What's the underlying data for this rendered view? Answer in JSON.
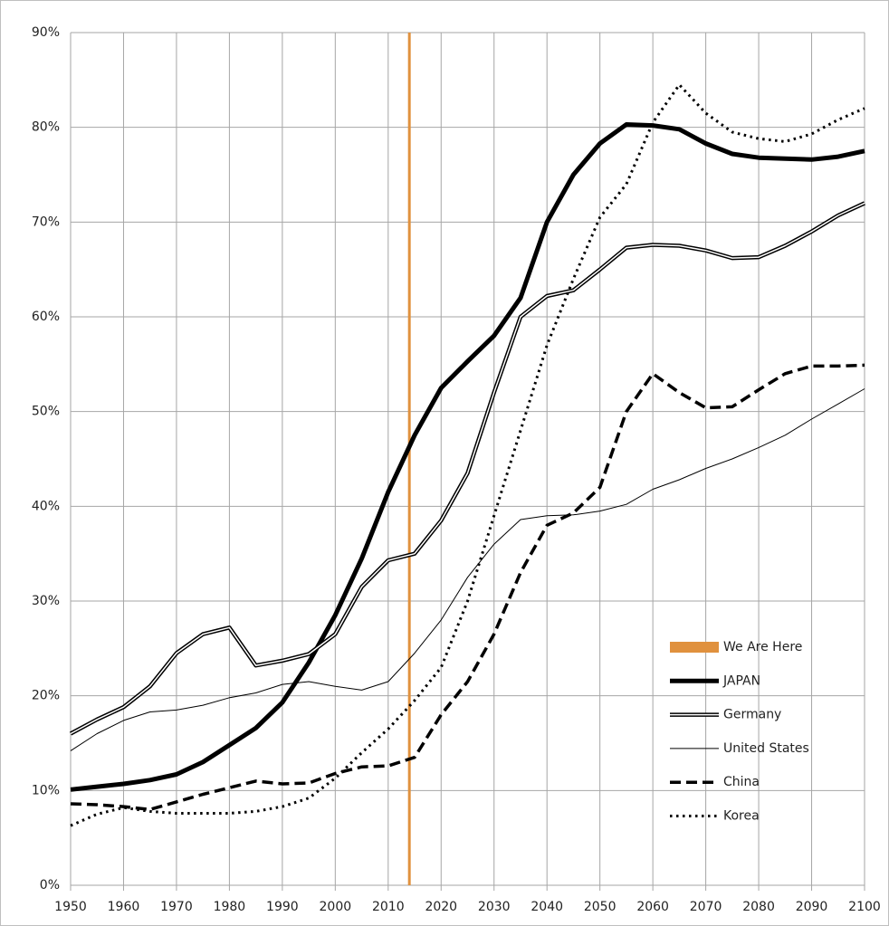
{
  "chart_data": {
    "type": "line",
    "x": [
      1950,
      1955,
      1960,
      1965,
      1970,
      1975,
      1980,
      1985,
      1990,
      1995,
      2000,
      2005,
      2010,
      2015,
      2020,
      2025,
      2030,
      2035,
      2040,
      2045,
      2050,
      2055,
      2060,
      2065,
      2070,
      2075,
      2080,
      2085,
      2090,
      2095,
      2100
    ],
    "xlim": [
      1950,
      2100
    ],
    "xticks": [
      1950,
      1960,
      1970,
      1980,
      1990,
      2000,
      2010,
      2020,
      2030,
      2040,
      2050,
      2060,
      2070,
      2080,
      2090,
      2100
    ],
    "ylim": [
      0,
      90
    ],
    "yticks": [
      {
        "value": 0,
        "label": "0%"
      },
      {
        "value": 10,
        "label": "10%"
      },
      {
        "value": 20,
        "label": "20%"
      },
      {
        "value": 30,
        "label": "30%"
      },
      {
        "value": 40,
        "label": "40%"
      },
      {
        "value": 50,
        "label": "50%"
      },
      {
        "value": 60,
        "label": "60%"
      },
      {
        "value": 70,
        "label": "70%"
      },
      {
        "value": 80,
        "label": "80%"
      },
      {
        "value": 90,
        "label": "90%"
      }
    ],
    "grid": true,
    "marker": {
      "name": "We Are Here",
      "x": 2014,
      "color": "#e0913e"
    },
    "series": [
      {
        "name": "JAPAN",
        "color": "#000000",
        "style": "thick",
        "values": [
          10.1,
          10.4,
          10.7,
          11.1,
          11.7,
          13.0,
          14.8,
          16.6,
          19.3,
          23.5,
          28.5,
          34.5,
          41.5,
          47.5,
          52.5,
          55.3,
          58.0,
          62.0,
          70.0,
          75.0,
          78.3,
          80.3,
          80.2,
          79.8,
          78.3,
          77.2,
          76.8,
          76.7,
          76.6,
          76.9,
          77.5
        ]
      },
      {
        "name": "Germany",
        "color": "#000000",
        "style": "double",
        "values": [
          16.0,
          17.5,
          18.8,
          21.0,
          24.5,
          26.5,
          27.2,
          23.2,
          23.7,
          24.4,
          26.5,
          31.5,
          34.3,
          35.0,
          38.5,
          43.5,
          52.0,
          60.0,
          62.2,
          62.8,
          65.0,
          67.3,
          67.6,
          67.5,
          67.0,
          66.2,
          66.3,
          67.5,
          69.0,
          70.7,
          72.0
        ]
      },
      {
        "name": "United States",
        "color": "#000000",
        "style": "thin",
        "values": [
          14.2,
          16.0,
          17.4,
          18.3,
          18.5,
          19.0,
          19.8,
          20.3,
          21.2,
          21.5,
          21.0,
          20.6,
          21.5,
          24.5,
          28.0,
          32.5,
          36.0,
          38.6,
          39.0,
          39.1,
          39.5,
          40.2,
          41.8,
          42.8,
          44.0,
          45.0,
          46.2,
          47.5,
          49.2,
          50.8,
          52.4
        ]
      },
      {
        "name": "China",
        "color": "#000000",
        "style": "dashed",
        "values": [
          8.6,
          8.5,
          8.3,
          8.0,
          8.8,
          9.6,
          10.3,
          11.0,
          10.7,
          10.8,
          11.8,
          12.5,
          12.6,
          13.5,
          18.0,
          21.5,
          26.5,
          33.0,
          38.0,
          39.3,
          42.0,
          50.0,
          54.0,
          52.0,
          50.4,
          50.5,
          52.3,
          54.0,
          54.8,
          54.8,
          54.9
        ]
      },
      {
        "name": "Korea",
        "color": "#000000",
        "style": "dotted",
        "values": [
          6.3,
          7.5,
          8.2,
          7.8,
          7.6,
          7.6,
          7.6,
          7.8,
          8.3,
          9.2,
          11.3,
          14.0,
          16.5,
          19.5,
          23.0,
          30.0,
          39.0,
          48.0,
          57.0,
          64.0,
          70.5,
          74.0,
          80.5,
          84.5,
          81.5,
          79.5,
          78.8,
          78.5,
          79.3,
          80.8,
          82.0
        ]
      }
    ]
  }
}
